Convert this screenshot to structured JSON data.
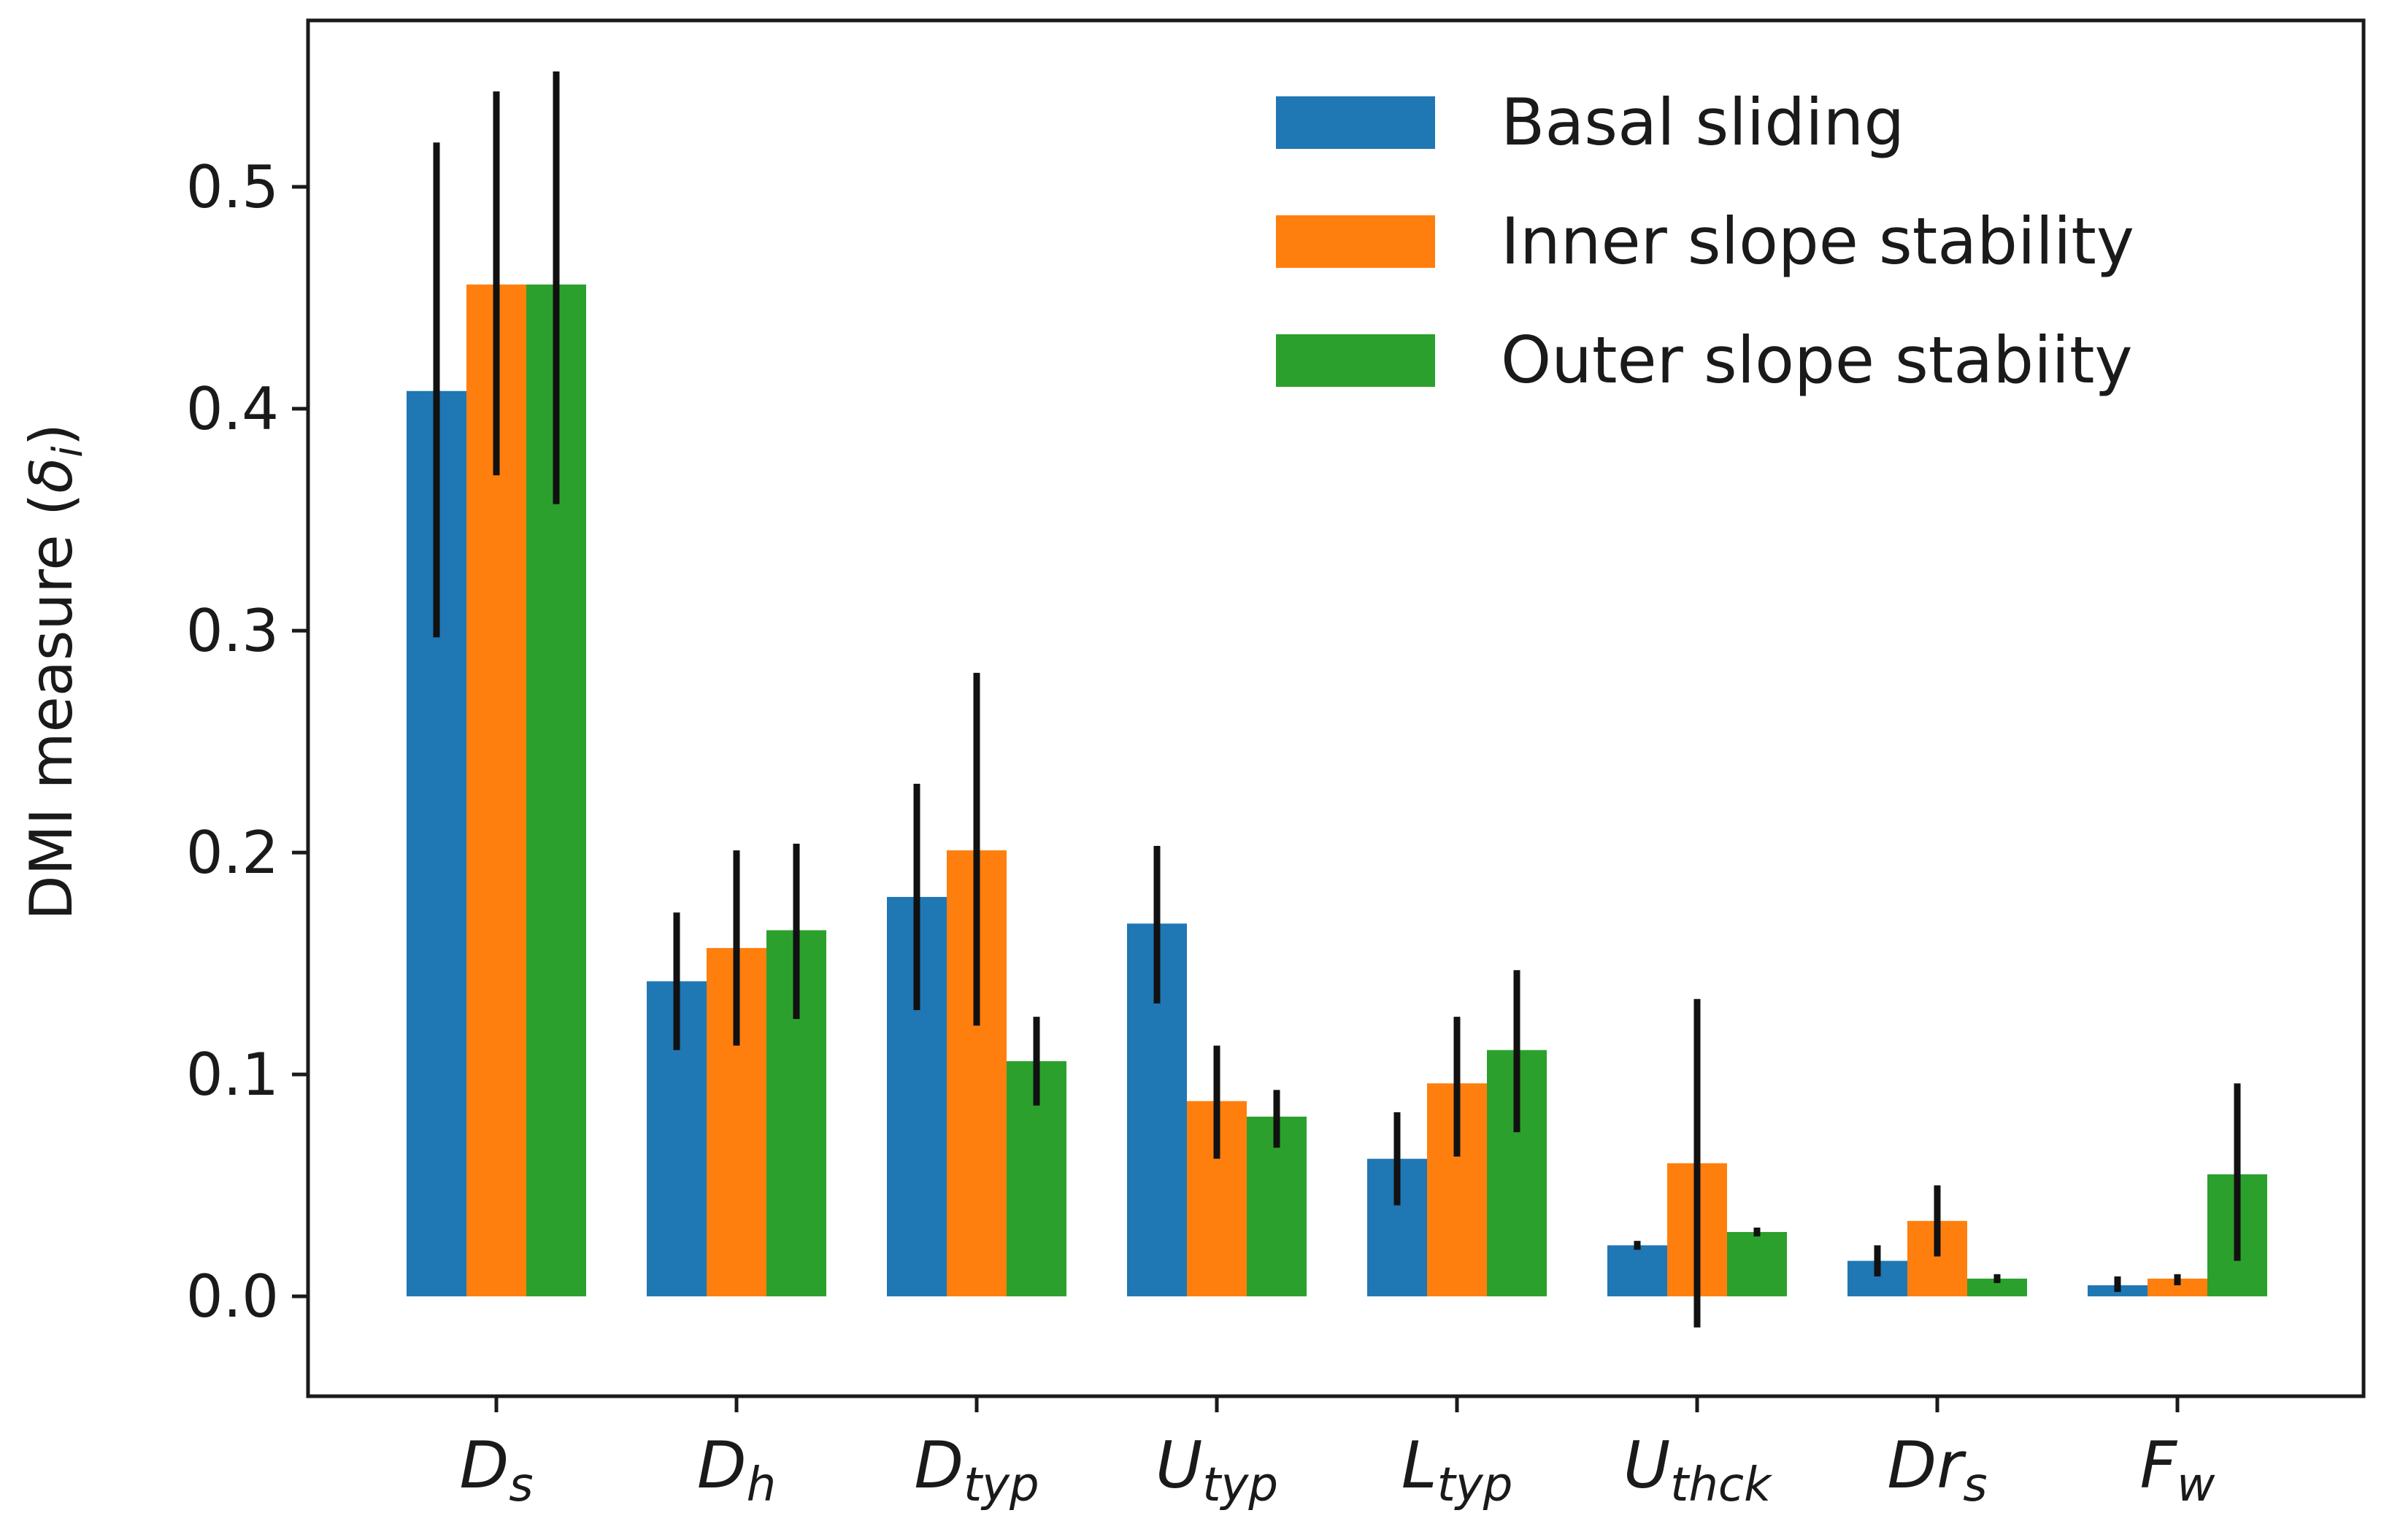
{
  "chart_data": {
    "type": "bar",
    "title": "",
    "xlabel": "",
    "ylabel": "DMI measure (δi)",
    "ylabel_parts": {
      "text": "DMI measure (",
      "symbol": "δ",
      "sub": "i",
      "close": ")"
    },
    "ylim": [
      -0.045,
      0.575
    ],
    "yticks": [
      "0.0",
      "0.1",
      "0.2",
      "0.3",
      "0.4",
      "0.5"
    ],
    "ytick_values": [
      0.0,
      0.1,
      0.2,
      0.3,
      0.4,
      0.5
    ],
    "grid": false,
    "legend_position": "top-right",
    "categories": [
      {
        "base": "D",
        "sub": "s"
      },
      {
        "base": "D",
        "sub": "h"
      },
      {
        "base": "D",
        "sub": "typ"
      },
      {
        "base": "U",
        "sub": "typ"
      },
      {
        "base": "L",
        "sub": "typ"
      },
      {
        "base": "U",
        "sub": "thck"
      },
      {
        "base": "Dr",
        "sub": "s"
      },
      {
        "base": "F",
        "sub": "w"
      }
    ],
    "series": [
      {
        "name": "Basal sliding",
        "color": "#1f77b4",
        "values": [
          0.408,
          0.142,
          0.18,
          0.168,
          0.062,
          0.023,
          0.016,
          0.005
        ],
        "err_low": [
          0.297,
          0.111,
          0.129,
          0.132,
          0.041,
          0.021,
          0.009,
          0.002
        ],
        "err_high": [
          0.52,
          0.173,
          0.231,
          0.203,
          0.083,
          0.025,
          0.023,
          0.009
        ]
      },
      {
        "name": "Inner slope stability",
        "color": "#ff7f0e",
        "values": [
          0.456,
          0.157,
          0.201,
          0.088,
          0.096,
          0.06,
          0.034,
          0.008
        ],
        "err_low": [
          0.37,
          0.113,
          0.122,
          0.062,
          0.063,
          -0.014,
          0.018,
          0.005
        ],
        "err_high": [
          0.543,
          0.201,
          0.281,
          0.113,
          0.126,
          0.134,
          0.05,
          0.01
        ]
      },
      {
        "name": "Outer slope stabiity",
        "color": "#2ca02c",
        "values": [
          0.456,
          0.165,
          0.106,
          0.081,
          0.111,
          0.029,
          0.008,
          0.055
        ],
        "err_low": [
          0.357,
          0.125,
          0.086,
          0.067,
          0.074,
          0.027,
          0.006,
          0.016
        ],
        "err_high": [
          0.552,
          0.204,
          0.126,
          0.093,
          0.147,
          0.031,
          0.01,
          0.096
        ]
      }
    ]
  }
}
